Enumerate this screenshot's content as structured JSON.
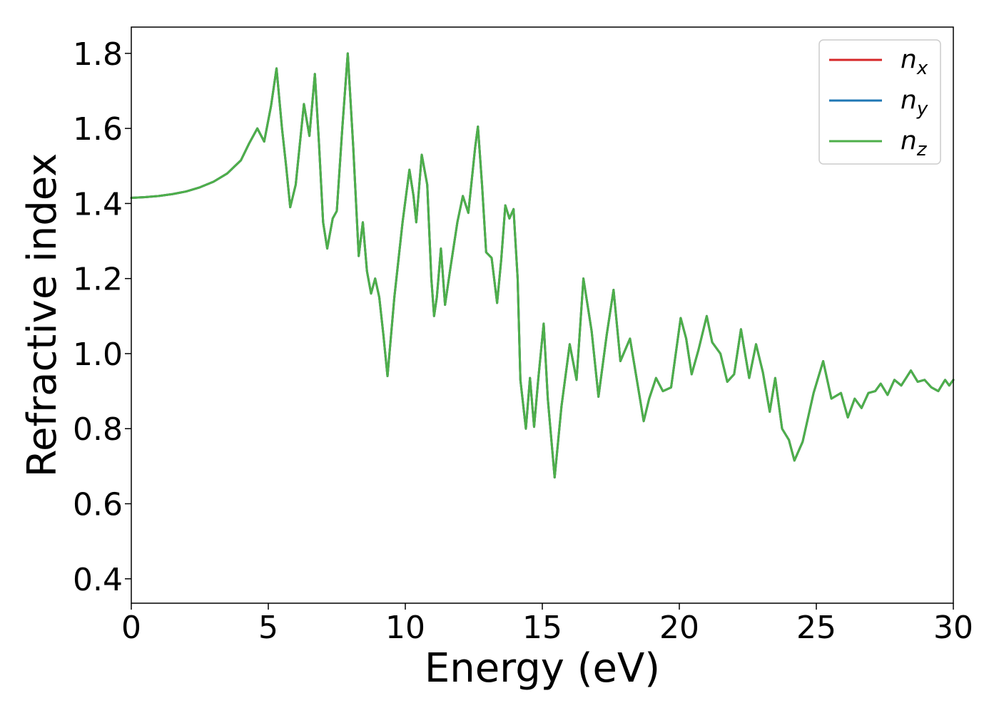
{
  "chart_data": {
    "type": "line",
    "xlabel": "Energy (eV)",
    "ylabel": "Refractive index",
    "xlim": [
      0,
      30
    ],
    "ylim": [
      0.335,
      1.87
    ],
    "xticks": [
      0,
      5,
      10,
      15,
      20,
      25,
      30
    ],
    "yticks": [
      0.4,
      0.6,
      0.8,
      1.0,
      1.2,
      1.4,
      1.6,
      1.8
    ],
    "xtick_labels": [
      "0",
      "5",
      "10",
      "15",
      "20",
      "25",
      "30"
    ],
    "ytick_labels": [
      "0.4",
      "0.6",
      "0.8",
      "1.0",
      "1.2",
      "1.4",
      "1.6",
      "1.8"
    ],
    "grid": false,
    "legend_position": "top-right",
    "series": [
      {
        "name": "n",
        "sub": "x",
        "color": "#d62728",
        "points": []
      },
      {
        "name": "n",
        "sub": "y",
        "color": "#1f77b4",
        "points": []
      },
      {
        "name": "n",
        "sub": "z",
        "color": "#4daf4a",
        "points": [
          [
            0,
            1.415
          ],
          [
            0.5,
            1.417
          ],
          [
            1,
            1.42
          ],
          [
            1.5,
            1.425
          ],
          [
            2,
            1.432
          ],
          [
            2.5,
            1.443
          ],
          [
            3,
            1.458
          ],
          [
            3.5,
            1.48
          ],
          [
            4,
            1.515
          ],
          [
            4.3,
            1.56
          ],
          [
            4.6,
            1.6
          ],
          [
            4.85,
            1.565
          ],
          [
            5.1,
            1.66
          ],
          [
            5.3,
            1.76
          ],
          [
            5.5,
            1.6
          ],
          [
            5.65,
            1.5
          ],
          [
            5.8,
            1.39
          ],
          [
            6.0,
            1.45
          ],
          [
            6.3,
            1.665
          ],
          [
            6.5,
            1.58
          ],
          [
            6.7,
            1.745
          ],
          [
            6.85,
            1.56
          ],
          [
            7.0,
            1.35
          ],
          [
            7.15,
            1.28
          ],
          [
            7.35,
            1.36
          ],
          [
            7.5,
            1.38
          ],
          [
            7.7,
            1.6
          ],
          [
            7.9,
            1.8
          ],
          [
            8.1,
            1.55
          ],
          [
            8.3,
            1.26
          ],
          [
            8.45,
            1.35
          ],
          [
            8.6,
            1.22
          ],
          [
            8.75,
            1.16
          ],
          [
            8.9,
            1.2
          ],
          [
            9.05,
            1.15
          ],
          [
            9.2,
            1.05
          ],
          [
            9.35,
            0.94
          ],
          [
            9.6,
            1.15
          ],
          [
            9.9,
            1.35
          ],
          [
            10.15,
            1.49
          ],
          [
            10.3,
            1.42
          ],
          [
            10.4,
            1.35
          ],
          [
            10.6,
            1.53
          ],
          [
            10.8,
            1.45
          ],
          [
            10.95,
            1.2
          ],
          [
            11.05,
            1.1
          ],
          [
            11.15,
            1.15
          ],
          [
            11.3,
            1.28
          ],
          [
            11.45,
            1.13
          ],
          [
            11.65,
            1.23
          ],
          [
            11.9,
            1.35
          ],
          [
            12.1,
            1.42
          ],
          [
            12.3,
            1.375
          ],
          [
            12.55,
            1.55
          ],
          [
            12.65,
            1.605
          ],
          [
            12.8,
            1.45
          ],
          [
            12.95,
            1.27
          ],
          [
            13.15,
            1.255
          ],
          [
            13.35,
            1.135
          ],
          [
            13.5,
            1.25
          ],
          [
            13.65,
            1.395
          ],
          [
            13.8,
            1.36
          ],
          [
            13.95,
            1.385
          ],
          [
            14.1,
            1.2
          ],
          [
            14.2,
            0.93
          ],
          [
            14.4,
            0.8
          ],
          [
            14.55,
            0.935
          ],
          [
            14.7,
            0.805
          ],
          [
            14.85,
            0.93
          ],
          [
            15.05,
            1.08
          ],
          [
            15.2,
            0.88
          ],
          [
            15.45,
            0.67
          ],
          [
            15.7,
            0.86
          ],
          [
            16.0,
            1.025
          ],
          [
            16.25,
            0.93
          ],
          [
            16.5,
            1.2
          ],
          [
            16.8,
            1.06
          ],
          [
            17.05,
            0.885
          ],
          [
            17.35,
            1.05
          ],
          [
            17.6,
            1.17
          ],
          [
            17.85,
            0.98
          ],
          [
            18.2,
            1.04
          ],
          [
            18.45,
            0.93
          ],
          [
            18.7,
            0.82
          ],
          [
            18.9,
            0.88
          ],
          [
            19.15,
            0.935
          ],
          [
            19.4,
            0.9
          ],
          [
            19.7,
            0.91
          ],
          [
            20.05,
            1.095
          ],
          [
            20.25,
            1.04
          ],
          [
            20.45,
            0.945
          ],
          [
            20.7,
            1.01
          ],
          [
            21.0,
            1.1
          ],
          [
            21.2,
            1.03
          ],
          [
            21.5,
            1.0
          ],
          [
            21.75,
            0.925
          ],
          [
            22.0,
            0.945
          ],
          [
            22.25,
            1.065
          ],
          [
            22.55,
            0.935
          ],
          [
            22.8,
            1.025
          ],
          [
            23.05,
            0.95
          ],
          [
            23.3,
            0.845
          ],
          [
            23.5,
            0.935
          ],
          [
            23.75,
            0.8
          ],
          [
            24.0,
            0.77
          ],
          [
            24.2,
            0.715
          ],
          [
            24.5,
            0.765
          ],
          [
            24.9,
            0.895
          ],
          [
            25.25,
            0.98
          ],
          [
            25.55,
            0.88
          ],
          [
            25.9,
            0.895
          ],
          [
            26.15,
            0.83
          ],
          [
            26.4,
            0.88
          ],
          [
            26.65,
            0.855
          ],
          [
            26.9,
            0.895
          ],
          [
            27.15,
            0.9
          ],
          [
            27.35,
            0.92
          ],
          [
            27.6,
            0.89
          ],
          [
            27.85,
            0.93
          ],
          [
            28.1,
            0.915
          ],
          [
            28.45,
            0.955
          ],
          [
            28.7,
            0.925
          ],
          [
            28.95,
            0.93
          ],
          [
            29.2,
            0.91
          ],
          [
            29.45,
            0.9
          ],
          [
            29.7,
            0.93
          ],
          [
            29.85,
            0.915
          ],
          [
            30,
            0.93
          ]
        ]
      }
    ]
  }
}
